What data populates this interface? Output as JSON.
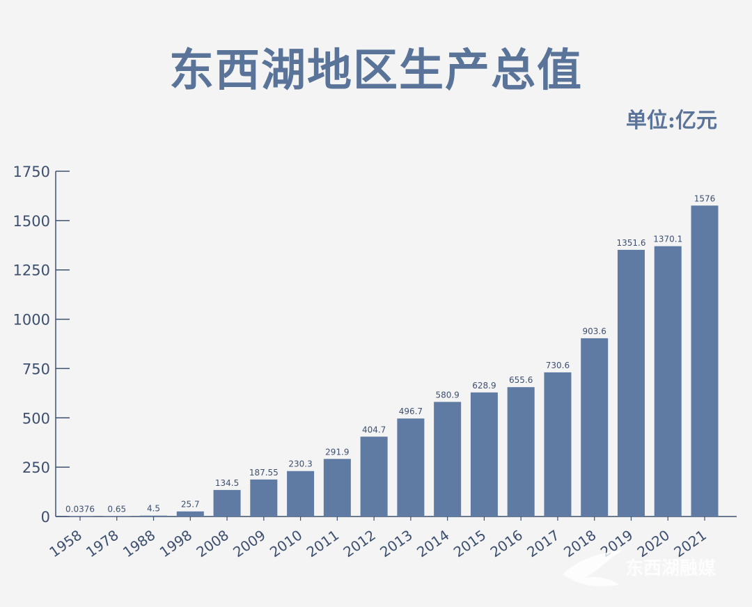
{
  "title": "东西湖地区生产总值",
  "unit_label": "单位:亿元",
  "watermark_text": "东西湖融媒",
  "colors": {
    "bar": "#5f7aa3",
    "title": "#5a7399",
    "axis": "#3d4f6e",
    "background": "#f4f4f4"
  },
  "chart_data": {
    "type": "bar",
    "title": "东西湖地区生产总值",
    "xlabel": "",
    "ylabel": "",
    "unit": "单位:亿元",
    "categories": [
      "1958",
      "1978",
      "1988",
      "1998",
      "2008",
      "2009",
      "2010",
      "2011",
      "2012",
      "2013",
      "2014",
      "2015",
      "2016",
      "2017",
      "2018",
      "2019",
      "2020",
      "2021"
    ],
    "values": [
      0.0376,
      0.65,
      4.5,
      25.7,
      134.5,
      187.55,
      230.3,
      291.9,
      404.7,
      496.7,
      580.9,
      628.9,
      655.6,
      730.6,
      903.6,
      1351.6,
      1370.1,
      1576
    ],
    "value_labels": [
      "0.0376",
      "0.65",
      "4.5",
      "25.7",
      "134.5",
      "187.55",
      "230.3",
      "291.9",
      "404.7",
      "496.7",
      "580.9",
      "628.9",
      "655.6",
      "730.6",
      "903.6",
      "1351.6",
      "1370.1",
      "1576"
    ],
    "ylim": [
      0,
      1750
    ],
    "yticks": [
      "0",
      "250",
      "500",
      "750",
      "1000",
      "1250",
      "1500",
      "1750"
    ],
    "grid": false,
    "legend": "none"
  }
}
